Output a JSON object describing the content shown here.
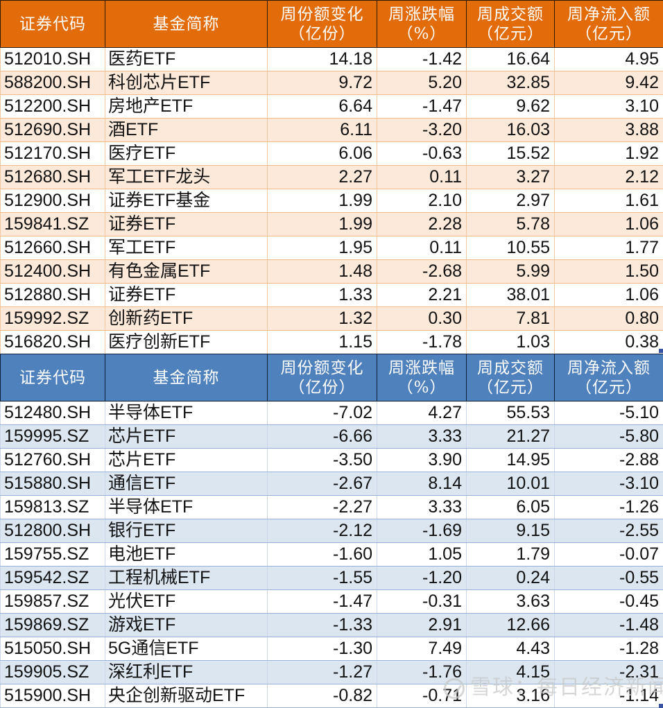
{
  "headers": {
    "code": "证券代码",
    "name": "基金简称",
    "share_change": [
      "周份额变化",
      "（亿份）"
    ],
    "pct_change": [
      "周涨跌幅",
      "（%）"
    ],
    "turnover": [
      "周成交额",
      "（亿元）"
    ],
    "net_inflow": [
      "周净流入额",
      "（亿元）"
    ]
  },
  "colors": {
    "top_header": "#e26b0a",
    "top_stripe": "#fde9d9",
    "bottom_header": "#4f81bd",
    "bottom_stripe": "#dce6f1"
  },
  "top_table": {
    "rows": [
      [
        "512010.SH",
        "医药ETF",
        "14.18",
        "-1.42",
        "16.64",
        "4.95"
      ],
      [
        "588200.SH",
        "科创芯片ETF",
        "9.72",
        "5.20",
        "32.85",
        "9.42"
      ],
      [
        "512200.SH",
        "房地产ETF",
        "6.64",
        "-1.47",
        "9.62",
        "3.10"
      ],
      [
        "512690.SH",
        "酒ETF",
        "6.11",
        "-3.20",
        "16.03",
        "3.88"
      ],
      [
        "512170.SH",
        "医疗ETF",
        "6.06",
        "-0.63",
        "15.52",
        "1.92"
      ],
      [
        "512680.SH",
        "军工ETF龙头",
        "2.27",
        "0.11",
        "3.27",
        "2.12"
      ],
      [
        "512900.SH",
        "证券ETF基金",
        "1.99",
        "2.10",
        "2.97",
        "1.61"
      ],
      [
        "159841.SZ",
        "证券ETF",
        "1.99",
        "2.28",
        "5.78",
        "1.06"
      ],
      [
        "512660.SH",
        "军工ETF",
        "1.95",
        "0.11",
        "10.55",
        "1.77"
      ],
      [
        "512400.SH",
        "有色金属ETF",
        "1.48",
        "-2.68",
        "5.99",
        "1.50"
      ],
      [
        "512880.SH",
        "证券ETF",
        "1.33",
        "2.21",
        "38.01",
        "1.06"
      ],
      [
        "159992.SZ",
        "创新药ETF",
        "1.32",
        "0.30",
        "7.81",
        "0.80"
      ],
      [
        "516820.SH",
        "医疗创新ETF",
        "1.15",
        "-1.78",
        "1.03",
        "0.38"
      ]
    ]
  },
  "bottom_table": {
    "rows": [
      [
        "512480.SH",
        "半导体ETF",
        "-7.02",
        "4.27",
        "55.53",
        "-5.10"
      ],
      [
        "159995.SZ",
        "芯片ETF",
        "-6.66",
        "3.33",
        "21.27",
        "-5.80"
      ],
      [
        "512760.SH",
        "芯片ETF",
        "-3.50",
        "3.90",
        "14.95",
        "-2.88"
      ],
      [
        "515880.SH",
        "通信ETF",
        "-2.67",
        "8.14",
        "10.01",
        "-3.10"
      ],
      [
        "159813.SZ",
        "半导体ETF",
        "-2.27",
        "3.33",
        "6.05",
        "-1.26"
      ],
      [
        "512800.SH",
        "银行ETF",
        "-2.12",
        "-1.69",
        "9.15",
        "-2.55"
      ],
      [
        "159755.SZ",
        "电池ETF",
        "-1.60",
        "1.05",
        "1.79",
        "-0.07"
      ],
      [
        "159542.SZ",
        "工程机械ETF",
        "-1.55",
        "-1.20",
        "0.24",
        "-0.55"
      ],
      [
        "159857.SZ",
        "光伏ETF",
        "-1.47",
        "-0.31",
        "3.63",
        "-0.45"
      ],
      [
        "159869.SZ",
        "游戏ETF",
        "-1.33",
        "2.91",
        "12.66",
        "-1.48"
      ],
      [
        "515050.SH",
        "5G通信ETF",
        "-1.30",
        "7.49",
        "4.43",
        "-1.28"
      ],
      [
        "159905.SZ",
        "深红利ETF",
        "-1.27",
        "-1.76",
        "4.15",
        "-2.31"
      ],
      [
        "515900.SH",
        "央企创新驱动ETF",
        "-0.82",
        "-0.71",
        "3.16",
        "-1.14"
      ]
    ]
  },
  "watermark": "雪球：每日经济新闻"
}
